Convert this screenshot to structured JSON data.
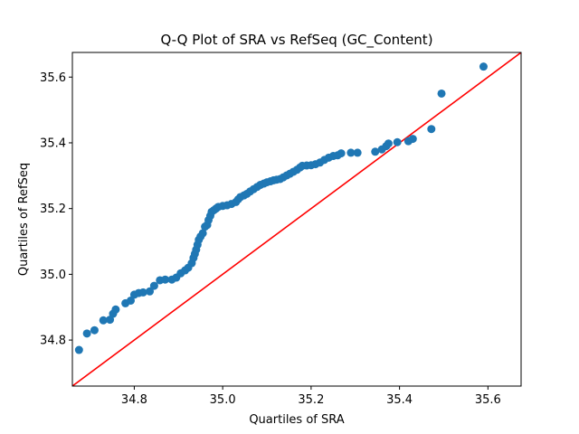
{
  "chart_data": {
    "type": "scatter",
    "title": "Q-Q Plot of SRA vs RefSeq (GC_Content)",
    "xlabel": "Quartiles of SRA",
    "ylabel": "Quartiles of RefSeq",
    "xlim": [
      34.66,
      35.675
    ],
    "ylim": [
      34.66,
      35.675
    ],
    "x_ticks": [
      34.8,
      35.0,
      35.2,
      35.4,
      35.6
    ],
    "x_tick_labels": [
      "34.8",
      "35.0",
      "35.2",
      "35.4",
      "35.6"
    ],
    "y_ticks": [
      34.8,
      35.0,
      35.2,
      35.4,
      35.6
    ],
    "y_tick_labels": [
      "34.8",
      "35.0",
      "35.2",
      "35.4",
      "35.6"
    ],
    "grid": false,
    "point_color": "#1f77b4",
    "reference_line": {
      "from": [
        34.66,
        34.66
      ],
      "to": [
        35.675,
        35.675
      ],
      "color": "#ff0000"
    },
    "points": [
      [
        34.675,
        34.77
      ],
      [
        34.693,
        34.82
      ],
      [
        34.71,
        34.83
      ],
      [
        34.73,
        34.86
      ],
      [
        34.745,
        34.862
      ],
      [
        34.752,
        34.88
      ],
      [
        34.758,
        34.893
      ],
      [
        34.78,
        34.912
      ],
      [
        34.792,
        34.92
      ],
      [
        34.8,
        34.938
      ],
      [
        34.81,
        34.943
      ],
      [
        34.82,
        34.945
      ],
      [
        34.835,
        34.948
      ],
      [
        34.845,
        34.965
      ],
      [
        34.858,
        34.982
      ],
      [
        34.87,
        34.984
      ],
      [
        34.885,
        34.984
      ],
      [
        34.895,
        34.99
      ],
      [
        34.905,
        35.003
      ],
      [
        34.915,
        35.012
      ],
      [
        34.922,
        35.02
      ],
      [
        34.93,
        35.034
      ],
      [
        34.934,
        35.05
      ],
      [
        34.937,
        35.062
      ],
      [
        34.94,
        35.075
      ],
      [
        34.943,
        35.09
      ],
      [
        34.946,
        35.105
      ],
      [
        34.95,
        35.115
      ],
      [
        34.955,
        35.125
      ],
      [
        34.96,
        35.145
      ],
      [
        34.965,
        35.15
      ],
      [
        34.968,
        35.165
      ],
      [
        34.972,
        35.178
      ],
      [
        34.975,
        35.19
      ],
      [
        34.98,
        35.195
      ],
      [
        34.985,
        35.2
      ],
      [
        34.99,
        35.205
      ],
      [
        35.0,
        35.208
      ],
      [
        35.01,
        35.21
      ],
      [
        35.02,
        35.214
      ],
      [
        35.03,
        35.22
      ],
      [
        35.035,
        35.228
      ],
      [
        35.04,
        35.235
      ],
      [
        35.048,
        35.24
      ],
      [
        35.055,
        35.245
      ],
      [
        35.062,
        35.252
      ],
      [
        35.07,
        35.259
      ],
      [
        35.078,
        35.266
      ],
      [
        35.085,
        35.272
      ],
      [
        35.093,
        35.276
      ],
      [
        35.1,
        35.28
      ],
      [
        35.108,
        35.283
      ],
      [
        35.115,
        35.286
      ],
      [
        35.122,
        35.288
      ],
      [
        35.13,
        35.29
      ],
      [
        35.137,
        35.295
      ],
      [
        35.145,
        35.301
      ],
      [
        35.152,
        35.306
      ],
      [
        35.16,
        35.312
      ],
      [
        35.168,
        35.318
      ],
      [
        35.175,
        35.325
      ],
      [
        35.18,
        35.33
      ],
      [
        35.19,
        35.331
      ],
      [
        35.2,
        35.332
      ],
      [
        35.21,
        35.335
      ],
      [
        35.22,
        35.34
      ],
      [
        35.23,
        35.348
      ],
      [
        35.24,
        35.355
      ],
      [
        35.25,
        35.36
      ],
      [
        35.26,
        35.362
      ],
      [
        35.268,
        35.368
      ],
      [
        35.29,
        35.37
      ],
      [
        35.305,
        35.37
      ],
      [
        35.345,
        35.373
      ],
      [
        35.36,
        35.38
      ],
      [
        35.37,
        35.39
      ],
      [
        35.375,
        35.398
      ],
      [
        35.395,
        35.402
      ],
      [
        35.42,
        35.405
      ],
      [
        35.43,
        35.412
      ],
      [
        35.472,
        35.442
      ],
      [
        35.495,
        35.55
      ],
      [
        35.59,
        35.632
      ]
    ]
  }
}
